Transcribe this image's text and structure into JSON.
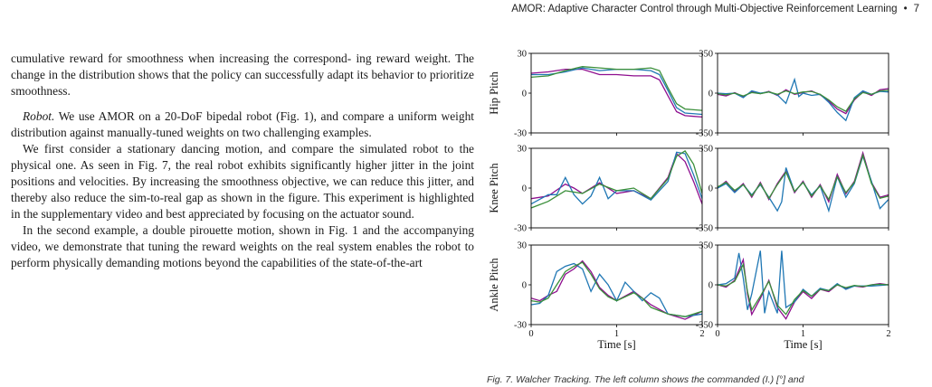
{
  "header": {
    "title": "AMOR: Adaptive Character Control through Multi-Objective Reinforcement Learning",
    "separator": "•",
    "page_number": "7"
  },
  "body": {
    "p1": "cumulative reward for smoothness when increasing the correspond- ing reward weight. The change in the distribution shows that the policy can successfully adapt its behavior to prioritize smoothness.",
    "p2_runin": "Robot.",
    "p2": " We use AMOR on a 20-DoF bipedal robot (Fig. 1), and compare a uniform weight distribution against manually-tuned weights on two challenging examples.",
    "p3": "We first consider a stationary dancing motion, and compare the simulated robot to the physical one. As seen in Fig. 7, the real robot exhibits significantly higher jitter in the joint positions and velocities. By increasing the smoothness objective, we can reduce this jitter, and thereby also reduce the sim-to-real gap as shown in the figure. This experiment is highlighted in the supplementary video and best appreciated by focusing on the actuator sound.",
    "p4": "In the second example, a double pirouette motion, shown in Fig. 1 and the accompanying video, we demonstrate that tuning the reward weights on the real system enables the robot to perform physically demanding motions beyond the capabilities of the state-of-the-art"
  },
  "figure": {
    "caption": "Fig. 7. Walcher Tracking. The left column shows the commanded (I.) [°] and",
    "colors": {
      "series_a": "#8e0e8e",
      "series_b": "#1f77b4",
      "series_c": "#3a8f3a"
    },
    "xlabel": "Time [s]"
  },
  "chart_data": [
    {
      "type": "line",
      "row": 0,
      "col": 0,
      "ylabel": "Hip Pitch",
      "xlim": [
        0,
        2
      ],
      "ylim": [
        -30,
        30
      ],
      "yticks": [
        "30",
        "0",
        "-30"
      ],
      "xticks": [],
      "series": [
        {
          "color_key": "series_a",
          "x": [
            0,
            0.2,
            0.4,
            0.6,
            0.8,
            1.0,
            1.2,
            1.4,
            1.5,
            1.6,
            1.7,
            1.8,
            2.0
          ],
          "y": [
            15,
            16,
            18,
            18,
            14,
            14,
            13,
            13,
            10,
            -2,
            -14,
            -17,
            -18
          ]
        },
        {
          "color_key": "series_b",
          "x": [
            0,
            0.2,
            0.4,
            0.6,
            0.8,
            1.0,
            1.2,
            1.4,
            1.5,
            1.6,
            1.7,
            1.8,
            2.0
          ],
          "y": [
            14,
            14,
            16,
            19,
            17,
            18,
            18,
            17,
            14,
            2,
            -11,
            -15,
            -16
          ]
        },
        {
          "color_key": "series_c",
          "x": [
            0,
            0.2,
            0.4,
            0.6,
            0.8,
            1.0,
            1.2,
            1.4,
            1.5,
            1.6,
            1.7,
            1.8,
            2.0
          ],
          "y": [
            12,
            13,
            17,
            20,
            19,
            18,
            18,
            19,
            17,
            4,
            -8,
            -12,
            -13
          ]
        }
      ]
    },
    {
      "type": "line",
      "row": 0,
      "col": 1,
      "xlim": [
        0,
        2
      ],
      "ylim": [
        -350,
        350
      ],
      "yticks": [
        "350",
        "0",
        "-350"
      ],
      "xticks": [],
      "series": [
        {
          "color_key": "series_a",
          "x": [
            0,
            0.1,
            0.2,
            0.3,
            0.4,
            0.5,
            0.6,
            0.7,
            0.8,
            0.9,
            1.0,
            1.1,
            1.2,
            1.3,
            1.4,
            1.5,
            1.6,
            1.7,
            1.8,
            1.9,
            2.0
          ],
          "y": [
            -10,
            -25,
            5,
            -30,
            10,
            -5,
            15,
            -20,
            30,
            -10,
            5,
            20,
            -15,
            -70,
            -140,
            -180,
            -60,
            10,
            -20,
            30,
            40
          ]
        },
        {
          "color_key": "series_b",
          "x": [
            0,
            0.1,
            0.2,
            0.3,
            0.4,
            0.5,
            0.6,
            0.7,
            0.8,
            0.9,
            0.95,
            1.0,
            1.1,
            1.2,
            1.3,
            1.4,
            1.5,
            1.6,
            1.7,
            1.8,
            1.9,
            2.0
          ],
          "y": [
            0,
            -5,
            0,
            -40,
            20,
            0,
            10,
            -15,
            -90,
            120,
            -30,
            0,
            -20,
            -10,
            -80,
            -170,
            -240,
            -40,
            20,
            -10,
            15,
            10
          ]
        },
        {
          "color_key": "series_c",
          "x": [
            0,
            0.1,
            0.2,
            0.3,
            0.4,
            0.5,
            0.6,
            0.7,
            0.8,
            0.9,
            1.0,
            1.1,
            1.2,
            1.3,
            1.4,
            1.5,
            1.6,
            1.7,
            1.8,
            1.9,
            2.0
          ],
          "y": [
            -5,
            -15,
            0,
            -25,
            5,
            -5,
            10,
            -10,
            20,
            -5,
            10,
            15,
            -10,
            -60,
            -120,
            -160,
            -50,
            5,
            -10,
            20,
            25
          ]
        }
      ]
    },
    {
      "type": "line",
      "row": 1,
      "col": 0,
      "ylabel": "Knee Pitch",
      "xlim": [
        0,
        2
      ],
      "ylim": [
        -30,
        30
      ],
      "yticks": [
        "30",
        "0",
        "-30"
      ],
      "xticks": [],
      "series": [
        {
          "color_key": "series_a",
          "x": [
            0,
            0.2,
            0.4,
            0.5,
            0.6,
            0.8,
            1.0,
            1.2,
            1.4,
            1.6,
            1.7,
            1.8,
            1.9,
            2.0
          ],
          "y": [
            -8,
            -6,
            3,
            0,
            -4,
            4,
            -4,
            -2,
            -8,
            8,
            26,
            20,
            5,
            -12
          ]
        },
        {
          "color_key": "series_b",
          "x": [
            0,
            0.2,
            0.3,
            0.4,
            0.5,
            0.6,
            0.7,
            0.8,
            0.9,
            1.0,
            1.2,
            1.4,
            1.6,
            1.7,
            1.8,
            1.9,
            2.0
          ],
          "y": [
            -12,
            -5,
            -5,
            8,
            -5,
            -12,
            -6,
            8,
            -8,
            -2,
            -2,
            -9,
            5,
            27,
            26,
            10,
            -8
          ]
        },
        {
          "color_key": "series_c",
          "x": [
            0,
            0.2,
            0.4,
            0.6,
            0.8,
            1.0,
            1.2,
            1.4,
            1.6,
            1.7,
            1.8,
            1.9,
            2.0
          ],
          "y": [
            -15,
            -10,
            -2,
            -4,
            3,
            -2,
            0,
            -8,
            7,
            24,
            28,
            18,
            -4
          ]
        }
      ]
    },
    {
      "type": "line",
      "row": 1,
      "col": 1,
      "xlim": [
        0,
        2
      ],
      "ylim": [
        -350,
        350
      ],
      "yticks": [
        "350",
        "0",
        "-350"
      ],
      "xticks": [],
      "series": [
        {
          "color_key": "series_a",
          "x": [
            0,
            0.1,
            0.2,
            0.3,
            0.4,
            0.5,
            0.6,
            0.7,
            0.8,
            0.9,
            1.0,
            1.1,
            1.2,
            1.3,
            1.4,
            1.5,
            1.6,
            1.7,
            1.8,
            1.9,
            2.0
          ],
          "y": [
            0,
            60,
            -30,
            40,
            -80,
            50,
            -100,
            40,
            150,
            -40,
            60,
            -80,
            30,
            -120,
            120,
            -50,
            60,
            310,
            50,
            -80,
            -60
          ]
        },
        {
          "color_key": "series_b",
          "x": [
            0,
            0.1,
            0.2,
            0.3,
            0.4,
            0.5,
            0.6,
            0.7,
            0.75,
            0.8,
            0.9,
            1.0,
            1.1,
            1.2,
            1.3,
            1.4,
            1.5,
            1.6,
            1.7,
            1.8,
            1.9,
            2.0
          ],
          "y": [
            0,
            40,
            -40,
            30,
            -60,
            30,
            -80,
            -200,
            -120,
            180,
            -30,
            50,
            -60,
            20,
            -200,
            100,
            -80,
            40,
            280,
            60,
            -180,
            -100
          ]
        },
        {
          "color_key": "series_c",
          "x": [
            0,
            0.1,
            0.2,
            0.3,
            0.4,
            0.5,
            0.6,
            0.7,
            0.8,
            0.9,
            1.0,
            1.1,
            1.2,
            1.3,
            1.4,
            1.5,
            1.6,
            1.7,
            1.8,
            1.9,
            2.0
          ],
          "y": [
            10,
            50,
            -20,
            30,
            -70,
            40,
            -90,
            30,
            140,
            -30,
            50,
            -70,
            20,
            -100,
            100,
            -40,
            50,
            290,
            40,
            -90,
            -70
          ]
        }
      ]
    },
    {
      "type": "line",
      "row": 2,
      "col": 0,
      "ylabel": "Ankle Pitch",
      "xlim": [
        0,
        2
      ],
      "ylim": [
        -30,
        30
      ],
      "yticks": [
        "30",
        "0",
        "-30"
      ],
      "xticks": [
        "0",
        "1",
        "2"
      ],
      "series": [
        {
          "color_key": "series_a",
          "x": [
            0,
            0.1,
            0.2,
            0.3,
            0.4,
            0.5,
            0.6,
            0.7,
            0.8,
            0.9,
            1.0,
            1.2,
            1.3,
            1.4,
            1.6,
            1.8,
            2.0
          ],
          "y": [
            -10,
            -12,
            -8,
            -5,
            8,
            12,
            18,
            10,
            -2,
            -8,
            -12,
            -5,
            -10,
            -15,
            -22,
            -26,
            -20
          ]
        },
        {
          "color_key": "series_b",
          "x": [
            0,
            0.1,
            0.2,
            0.3,
            0.4,
            0.5,
            0.6,
            0.7,
            0.8,
            0.9,
            1.0,
            1.1,
            1.2,
            1.3,
            1.4,
            1.5,
            1.6,
            1.8,
            2.0
          ],
          "y": [
            -15,
            -14,
            -8,
            10,
            14,
            16,
            12,
            -5,
            8,
            0,
            -12,
            2,
            -5,
            -12,
            -6,
            -10,
            -22,
            -24,
            -22
          ]
        },
        {
          "color_key": "series_c",
          "x": [
            0,
            0.1,
            0.2,
            0.3,
            0.4,
            0.5,
            0.6,
            0.7,
            0.8,
            0.9,
            1.0,
            1.2,
            1.3,
            1.4,
            1.6,
            1.8,
            2.0
          ],
          "y": [
            -12,
            -13,
            -10,
            0,
            10,
            14,
            17,
            8,
            -3,
            -9,
            -12,
            -6,
            -10,
            -17,
            -22,
            -24,
            -20
          ]
        }
      ]
    },
    {
      "type": "line",
      "row": 2,
      "col": 1,
      "xlim": [
        0,
        2
      ],
      "ylim": [
        -350,
        350
      ],
      "yticks": [
        "350",
        "0",
        "-350"
      ],
      "xticks": [
        "0",
        "1",
        "2"
      ],
      "series": [
        {
          "color_key": "series_a",
          "x": [
            0,
            0.1,
            0.2,
            0.3,
            0.35,
            0.4,
            0.5,
            0.6,
            0.7,
            0.8,
            0.9,
            1.0,
            1.1,
            1.2,
            1.3,
            1.4,
            1.5,
            1.6,
            1.7,
            1.8,
            1.9,
            2.0
          ],
          "y": [
            0,
            -20,
            40,
            220,
            -80,
            -260,
            -120,
            40,
            -200,
            -300,
            -150,
            -60,
            -120,
            -40,
            -60,
            0,
            -30,
            -10,
            -20,
            0,
            10,
            0
          ]
        },
        {
          "color_key": "series_b",
          "x": [
            0,
            0.1,
            0.2,
            0.25,
            0.3,
            0.35,
            0.4,
            0.5,
            0.55,
            0.6,
            0.7,
            0.75,
            0.8,
            0.9,
            1.0,
            1.1,
            1.2,
            1.3,
            1.4,
            1.5,
            1.6,
            1.8,
            2.0
          ],
          "y": [
            0,
            10,
            60,
            280,
            60,
            -220,
            -80,
            300,
            -250,
            -60,
            -250,
            300,
            -200,
            -150,
            -40,
            -100,
            -30,
            -50,
            10,
            -40,
            -10,
            -10,
            0
          ]
        },
        {
          "color_key": "series_c",
          "x": [
            0,
            0.1,
            0.2,
            0.3,
            0.35,
            0.4,
            0.5,
            0.6,
            0.7,
            0.8,
            0.9,
            1.0,
            1.1,
            1.2,
            1.3,
            1.4,
            1.5,
            1.6,
            1.7,
            1.8,
            1.9,
            2.0
          ],
          "y": [
            0,
            -10,
            30,
            180,
            -60,
            -220,
            -100,
            30,
            -180,
            -260,
            -130,
            -50,
            -100,
            -40,
            -50,
            0,
            -25,
            -5,
            -15,
            0,
            5,
            0
          ]
        }
      ]
    }
  ]
}
